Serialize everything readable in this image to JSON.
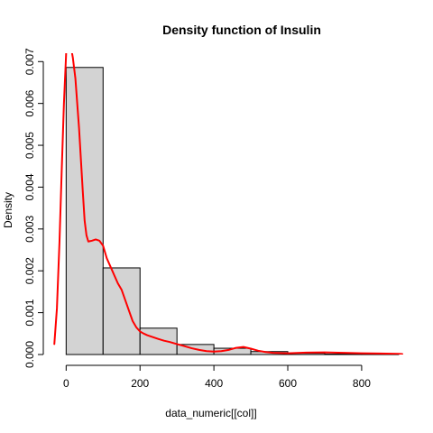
{
  "chart_data": {
    "type": "bar",
    "title": "Density function of Insulin",
    "xlabel": "data_numeric[[col]]",
    "ylabel": "Density",
    "xlim": [
      -35,
      915
    ],
    "ylim": [
      0,
      0.0072
    ],
    "x_ticks": [
      "0",
      "200",
      "400",
      "600",
      "800"
    ],
    "y_ticks": [
      "0.000",
      "0.001",
      "0.002",
      "0.003",
      "0.004",
      "0.005",
      "0.006",
      "0.007"
    ],
    "grid": false,
    "legend": "none",
    "bins": [
      {
        "x0": 0,
        "x1": 100,
        "value": 0.00686
      },
      {
        "x0": 100,
        "x1": 200,
        "value": 0.00207
      },
      {
        "x0": 200,
        "x1": 300,
        "value": 0.00063
      },
      {
        "x0": 300,
        "x1": 400,
        "value": 0.00024
      },
      {
        "x0": 400,
        "x1": 500,
        "value": 0.00015
      },
      {
        "x0": 500,
        "x1": 600,
        "value": 7e-05
      },
      {
        "x0": 600,
        "x1": 700,
        "value": 3e-05
      },
      {
        "x0": 700,
        "x1": 800,
        "value": 1e-05
      },
      {
        "x0": 800,
        "x1": 900,
        "value": 1e-05
      }
    ],
    "series": [
      {
        "type": "line",
        "x": [
          -32,
          -25,
          -18,
          -12,
          -6,
          0,
          6,
          12,
          18,
          25,
          35,
          45,
          50,
          55,
          60,
          70,
          80,
          90,
          100,
          110,
          120,
          130,
          140,
          150,
          160,
          170,
          180,
          190,
          200,
          210,
          220,
          230,
          240,
          250,
          265,
          280,
          300,
          320,
          340,
          360,
          380,
          400,
          420,
          440,
          460,
          480,
          500,
          520,
          540,
          560,
          580,
          600,
          650,
          700,
          750,
          800,
          850,
          900,
          910
        ],
        "y": [
          0.00025,
          0.0011,
          0.0027,
          0.0044,
          0.006,
          0.0072,
          0.0075,
          0.0074,
          0.0071,
          0.0066,
          0.0054,
          0.0039,
          0.0032,
          0.00285,
          0.0027,
          0.00272,
          0.00275,
          0.00272,
          0.0026,
          0.0023,
          0.0021,
          0.0019,
          0.0017,
          0.00155,
          0.0013,
          0.00105,
          0.0008,
          0.00065,
          0.00055,
          0.0005,
          0.00046,
          0.00043,
          0.0004,
          0.00037,
          0.00033,
          0.0003,
          0.00025,
          0.0002,
          0.00015,
          0.00011,
          8e-05,
          7e-05,
          8e-05,
          0.00011,
          0.00016,
          0.00018,
          0.00014,
          9e-05,
          6e-05,
          4e-05,
          3.5e-05,
          3e-05,
          4.5e-05,
          5e-05,
          4e-05,
          3e-05,
          2.5e-05,
          1.5e-05,
          1e-05
        ]
      }
    ]
  },
  "colors": {
    "bar_fill": "#d3d3d3",
    "bar_stroke": "#000000",
    "density_line": "#ff0000",
    "axis": "#000000",
    "background": "#ffffff"
  }
}
